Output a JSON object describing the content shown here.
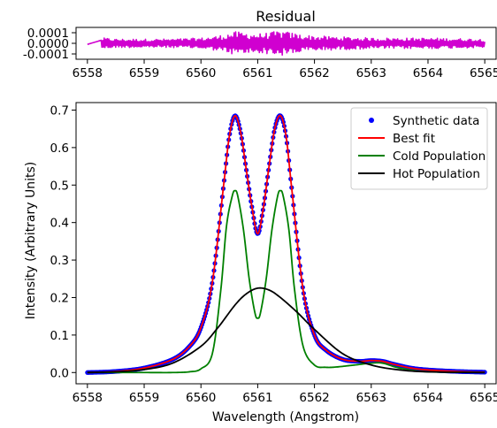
{
  "chart_data": [
    {
      "type": "line",
      "title": "Residual",
      "xlabel": "",
      "ylabel": "",
      "xlim": [
        6557.8,
        6565.2
      ],
      "ylim": [
        -0.00015,
        0.00015
      ],
      "x_ticks": [
        6558,
        6559,
        6560,
        6561,
        6562,
        6563,
        6564,
        6565
      ],
      "x_tick_labels": [
        "6558",
        "6559",
        "6560",
        "6561",
        "6562",
        "6563",
        "6564",
        "6565"
      ],
      "y_ticks": [
        0.0001,
        0.0,
        -0.0001
      ],
      "y_tick_labels": [
        "0.0001",
        "0.0000",
        "-0.0001"
      ],
      "grid": false,
      "series": [
        {
          "color": "#d000d0",
          "x_range": [
            6558,
            6565
          ],
          "envelope_x": [
            6558.0,
            6558.3,
            6558.5,
            6559.0,
            6559.5,
            6560.0,
            6560.3,
            6560.6,
            6560.8,
            6561.0,
            6561.2,
            6561.4,
            6561.6,
            6561.8,
            6562.0,
            6562.5,
            6563.0,
            6563.5,
            6564.0,
            6565.0
          ],
          "envelope_amp": [
            3e-05,
            5e-05,
            4e-05,
            4e-05,
            4e-05,
            5e-05,
            7e-05,
            0.00011,
            0.0001,
            9e-05,
            0.0001,
            0.00012,
            0.0001,
            8e-05,
            7e-05,
            6e-05,
            5e-05,
            5e-05,
            5e-05,
            4e-05
          ]
        }
      ]
    },
    {
      "type": "line",
      "title": "",
      "xlabel": "Wavelength (Angstrom)",
      "ylabel": "Intensity (Arbitrary Units)",
      "xlim": [
        6557.8,
        6565.2
      ],
      "ylim": [
        -0.03,
        0.72
      ],
      "x_ticks": [
        6558,
        6559,
        6560,
        6561,
        6562,
        6563,
        6564,
        6565
      ],
      "x_tick_labels": [
        "6558",
        "6559",
        "6560",
        "6561",
        "6562",
        "6563",
        "6564",
        "6565"
      ],
      "y_ticks": [
        0.0,
        0.1,
        0.2,
        0.3,
        0.4,
        0.5,
        0.6,
        0.7
      ],
      "y_tick_labels": [
        "0.0",
        "0.1",
        "0.2",
        "0.3",
        "0.4",
        "0.5",
        "0.6",
        "0.7"
      ],
      "grid": false,
      "legend": "top-right",
      "series": [
        {
          "name": "Synthetic data",
          "style": "dots",
          "color": "#0000ff",
          "x": [
            6558.0,
            6558.5,
            6559.0,
            6559.5,
            6559.8,
            6560.0,
            6560.2,
            6560.4,
            6560.5,
            6560.6,
            6560.7,
            6560.8,
            6560.9,
            6561.0,
            6561.1,
            6561.2,
            6561.3,
            6561.4,
            6561.5,
            6561.6,
            6561.8,
            6562.0,
            6562.2,
            6562.5,
            6562.8,
            6563.0,
            6563.2,
            6563.4,
            6563.7,
            6564.0,
            6564.5,
            6565.0
          ],
          "y": [
            0.0,
            0.003,
            0.012,
            0.035,
            0.07,
            0.12,
            0.24,
            0.5,
            0.63,
            0.685,
            0.64,
            0.54,
            0.44,
            0.37,
            0.44,
            0.55,
            0.65,
            0.685,
            0.63,
            0.49,
            0.22,
            0.1,
            0.06,
            0.035,
            0.03,
            0.032,
            0.03,
            0.022,
            0.012,
            0.007,
            0.003,
            0.001
          ]
        },
        {
          "name": "Best fit",
          "style": "line",
          "color": "#ff0000",
          "x": [
            6558.0,
            6558.5,
            6559.0,
            6559.5,
            6559.8,
            6560.0,
            6560.2,
            6560.4,
            6560.5,
            6560.6,
            6560.7,
            6560.8,
            6560.9,
            6561.0,
            6561.1,
            6561.2,
            6561.3,
            6561.4,
            6561.5,
            6561.6,
            6561.8,
            6562.0,
            6562.2,
            6562.5,
            6562.8,
            6563.0,
            6563.2,
            6563.4,
            6563.7,
            6564.0,
            6564.5,
            6565.0
          ],
          "y": [
            0.0,
            0.003,
            0.012,
            0.035,
            0.07,
            0.12,
            0.24,
            0.5,
            0.63,
            0.685,
            0.64,
            0.54,
            0.44,
            0.37,
            0.44,
            0.55,
            0.65,
            0.685,
            0.63,
            0.49,
            0.22,
            0.1,
            0.06,
            0.035,
            0.03,
            0.032,
            0.03,
            0.022,
            0.012,
            0.007,
            0.003,
            0.001
          ]
        },
        {
          "name": "Cold Population",
          "style": "line",
          "color": "#008000",
          "x": [
            6558.0,
            6559.0,
            6559.5,
            6559.8,
            6560.0,
            6560.2,
            6560.35,
            6560.45,
            6560.55,
            6560.6,
            6560.65,
            6560.75,
            6560.85,
            6560.95,
            6561.0,
            6561.05,
            6561.15,
            6561.25,
            6561.35,
            6561.4,
            6561.45,
            6561.55,
            6561.65,
            6561.8,
            6562.0,
            6562.2,
            6562.4,
            6562.7,
            6563.0,
            6563.2,
            6563.5,
            6564.0,
            6565.0
          ],
          "y": [
            0.0,
            0.0,
            0.0,
            0.002,
            0.01,
            0.05,
            0.22,
            0.39,
            0.47,
            0.485,
            0.47,
            0.38,
            0.25,
            0.16,
            0.145,
            0.16,
            0.25,
            0.38,
            0.47,
            0.485,
            0.47,
            0.38,
            0.22,
            0.07,
            0.02,
            0.014,
            0.015,
            0.02,
            0.025,
            0.025,
            0.012,
            0.002,
            0.0
          ]
        },
        {
          "name": "Hot Population",
          "style": "line",
          "color": "#000000",
          "x": [
            6558.0,
            6558.5,
            6559.0,
            6559.5,
            6560.0,
            6560.3,
            6560.6,
            6560.8,
            6561.0,
            6561.2,
            6561.4,
            6561.7,
            6562.0,
            6562.5,
            6563.0,
            6563.5,
            6564.0,
            6565.0
          ],
          "y": [
            0.0,
            0.002,
            0.008,
            0.025,
            0.07,
            0.12,
            0.18,
            0.21,
            0.225,
            0.22,
            0.2,
            0.16,
            0.115,
            0.05,
            0.02,
            0.007,
            0.002,
            0.0
          ]
        }
      ]
    }
  ]
}
